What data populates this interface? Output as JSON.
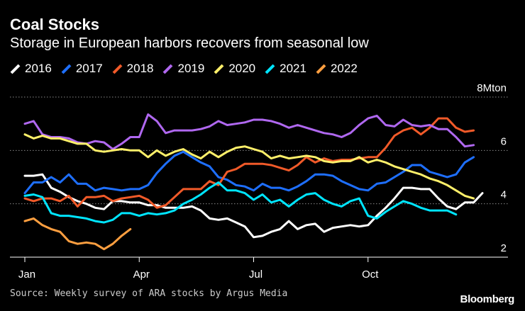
{
  "header": {
    "title": "Coal Stocks",
    "subtitle": "Storage in European harbors recovers from seasonal low"
  },
  "footer": {
    "source": "Source: Weekly survey of ARA stocks by Argus Media",
    "brand": "Bloomberg"
  },
  "chart_data": {
    "type": "line",
    "title": "Coal Stocks",
    "subtitle": "Storage in European harbors recovers from seasonal low",
    "xlabel": "",
    "ylabel": "Mton",
    "x_unit": "week of year",
    "xlim": [
      1,
      53
    ],
    "ylim": [
      2,
      8
    ],
    "x_ticks": [
      {
        "value": 1,
        "label": "Jan"
      },
      {
        "value": 14,
        "label": "Apr"
      },
      {
        "value": 27,
        "label": "Jul"
      },
      {
        "value": 40,
        "label": "Oct"
      }
    ],
    "y_ticks": [
      {
        "value": 2,
        "label": "2"
      },
      {
        "value": 4,
        "label": "4"
      },
      {
        "value": 6,
        "label": "6"
      },
      {
        "value": 8,
        "label": "8Mton"
      }
    ],
    "grid": "horizontal dotted",
    "legend": "top-left",
    "series": [
      {
        "name": "2016",
        "color": "#ffffff",
        "values": [
          5.05,
          5.05,
          5.1,
          4.6,
          4.45,
          4.25,
          4.1,
          4.0,
          3.85,
          3.8,
          4.1,
          4.1,
          4.05,
          4.05,
          3.95,
          3.95,
          3.85,
          3.85,
          3.85,
          3.9,
          3.75,
          3.45,
          3.4,
          3.45,
          3.3,
          3.15,
          2.75,
          2.8,
          2.95,
          3.05,
          3.35,
          3.05,
          3.2,
          3.25,
          2.95,
          3.1,
          3.15,
          3.2,
          3.15,
          3.2,
          3.55,
          3.85,
          4.2,
          4.6,
          4.6,
          4.55,
          4.55,
          4.2,
          3.9,
          3.8,
          4.05,
          4.05,
          4.4
        ]
      },
      {
        "name": "2017",
        "color": "#1e6fff",
        "values": [
          4.4,
          4.8,
          4.8,
          5.0,
          4.8,
          5.1,
          4.75,
          4.75,
          4.5,
          4.6,
          4.55,
          4.5,
          4.55,
          4.55,
          4.7,
          5.15,
          5.5,
          5.8,
          5.95,
          5.75,
          5.55,
          5.4,
          5.0,
          4.9,
          4.7,
          4.65,
          4.5,
          4.75,
          4.6,
          4.6,
          4.5,
          4.65,
          4.85,
          5.1,
          5.1,
          5.05,
          4.85,
          4.7,
          4.55,
          4.5,
          4.75,
          4.8,
          5.0,
          5.2,
          5.45,
          5.45,
          5.2,
          5.1,
          5.0,
          5.1,
          5.55,
          5.75
        ]
      },
      {
        "name": "2018",
        "color": "#f15a29",
        "values": [
          4.2,
          4.1,
          4.2,
          4.2,
          4.1,
          4.3,
          3.9,
          4.25,
          4.25,
          4.3,
          4.1,
          4.2,
          4.25,
          4.3,
          4.15,
          3.85,
          3.95,
          4.25,
          4.55,
          4.55,
          4.55,
          4.85,
          4.7,
          5.2,
          5.3,
          5.5,
          5.5,
          5.5,
          5.45,
          5.35,
          5.25,
          5.45,
          5.75,
          5.55,
          5.7,
          5.6,
          5.65,
          5.65,
          5.7,
          5.75,
          5.75,
          6.1,
          6.55,
          6.75,
          6.85,
          6.6,
          6.85,
          7.2,
          7.2,
          6.85,
          6.7,
          6.75
        ]
      },
      {
        "name": "2019",
        "color": "#b068f0",
        "values": [
          7.0,
          7.1,
          6.6,
          6.5,
          6.5,
          6.45,
          6.3,
          6.25,
          6.35,
          6.3,
          6.05,
          6.25,
          6.5,
          6.5,
          7.35,
          7.1,
          6.65,
          6.75,
          6.75,
          6.75,
          6.8,
          6.9,
          7.1,
          6.95,
          7.0,
          7.05,
          7.15,
          7.15,
          7.1,
          7.0,
          6.85,
          6.95,
          6.85,
          6.75,
          6.65,
          6.6,
          6.5,
          6.65,
          6.95,
          7.2,
          7.3,
          6.95,
          6.9,
          7.15,
          6.95,
          6.9,
          6.95,
          6.8,
          6.8,
          6.5,
          6.15,
          6.2
        ]
      },
      {
        "name": "2020",
        "color": "#fff06a",
        "values": [
          6.6,
          6.45,
          6.55,
          6.45,
          6.45,
          6.35,
          6.25,
          6.25,
          6.0,
          5.95,
          6.0,
          6.05,
          6.0,
          6.0,
          5.75,
          6.0,
          5.8,
          5.95,
          6.05,
          5.85,
          5.7,
          5.95,
          5.75,
          5.95,
          6.1,
          6.15,
          6.05,
          5.95,
          5.7,
          5.8,
          5.7,
          5.75,
          5.8,
          5.75,
          5.6,
          5.55,
          5.6,
          5.6,
          5.75,
          5.55,
          5.65,
          5.55,
          5.4,
          5.3,
          5.2,
          5.1,
          4.95,
          4.85,
          4.7,
          4.5,
          4.3,
          4.2
        ]
      },
      {
        "name": "2021",
        "color": "#00e5ff",
        "values": [
          4.3,
          4.35,
          4.25,
          3.65,
          3.55,
          3.55,
          3.5,
          3.45,
          3.35,
          3.3,
          3.4,
          3.65,
          3.65,
          3.55,
          3.65,
          3.6,
          3.65,
          3.75,
          4.0,
          4.15,
          4.35,
          4.6,
          4.8,
          4.5,
          4.5,
          4.4,
          4.15,
          4.35,
          4.05,
          4.15,
          3.9,
          4.15,
          4.35,
          4.4,
          4.15,
          4.0,
          3.9,
          4.1,
          4.2,
          3.55,
          3.45,
          3.7,
          3.9,
          4.1,
          4.0,
          3.85,
          3.75,
          3.75,
          3.75,
          3.6
        ]
      },
      {
        "name": "2022",
        "color": "#ff9f40",
        "values": [
          3.35,
          3.45,
          3.2,
          3.05,
          2.95,
          2.6,
          2.5,
          2.55,
          2.5,
          2.3,
          2.5,
          2.8,
          3.05
        ]
      }
    ]
  }
}
